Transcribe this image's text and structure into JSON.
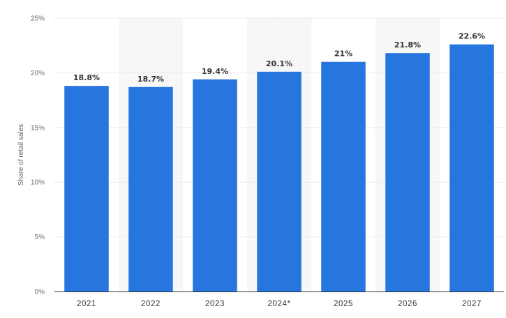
{
  "chart_data": {
    "type": "bar",
    "categories": [
      "2021",
      "2022",
      "2023",
      "2024*",
      "2025",
      "2026",
      "2027"
    ],
    "values": [
      18.8,
      18.7,
      19.4,
      20.1,
      21,
      21.8,
      22.6
    ],
    "value_labels": [
      "18.8%",
      "18.7%",
      "19.4%",
      "20.1%",
      "21%",
      "21.8%",
      "22.6%"
    ],
    "title": "",
    "xlabel": "",
    "ylabel": "Share of retail sales",
    "ylim": [
      0,
      25
    ],
    "yticks": [
      0,
      5,
      10,
      15,
      20,
      25
    ],
    "ytick_labels": [
      "0%",
      "5%",
      "10%",
      "15%",
      "20%",
      "25%"
    ],
    "grid": true,
    "legend": "none",
    "colors": {
      "bar": "#2775de",
      "band": "#f7f7f7",
      "grid": "#d6d6d6",
      "axis": "#333333"
    }
  }
}
